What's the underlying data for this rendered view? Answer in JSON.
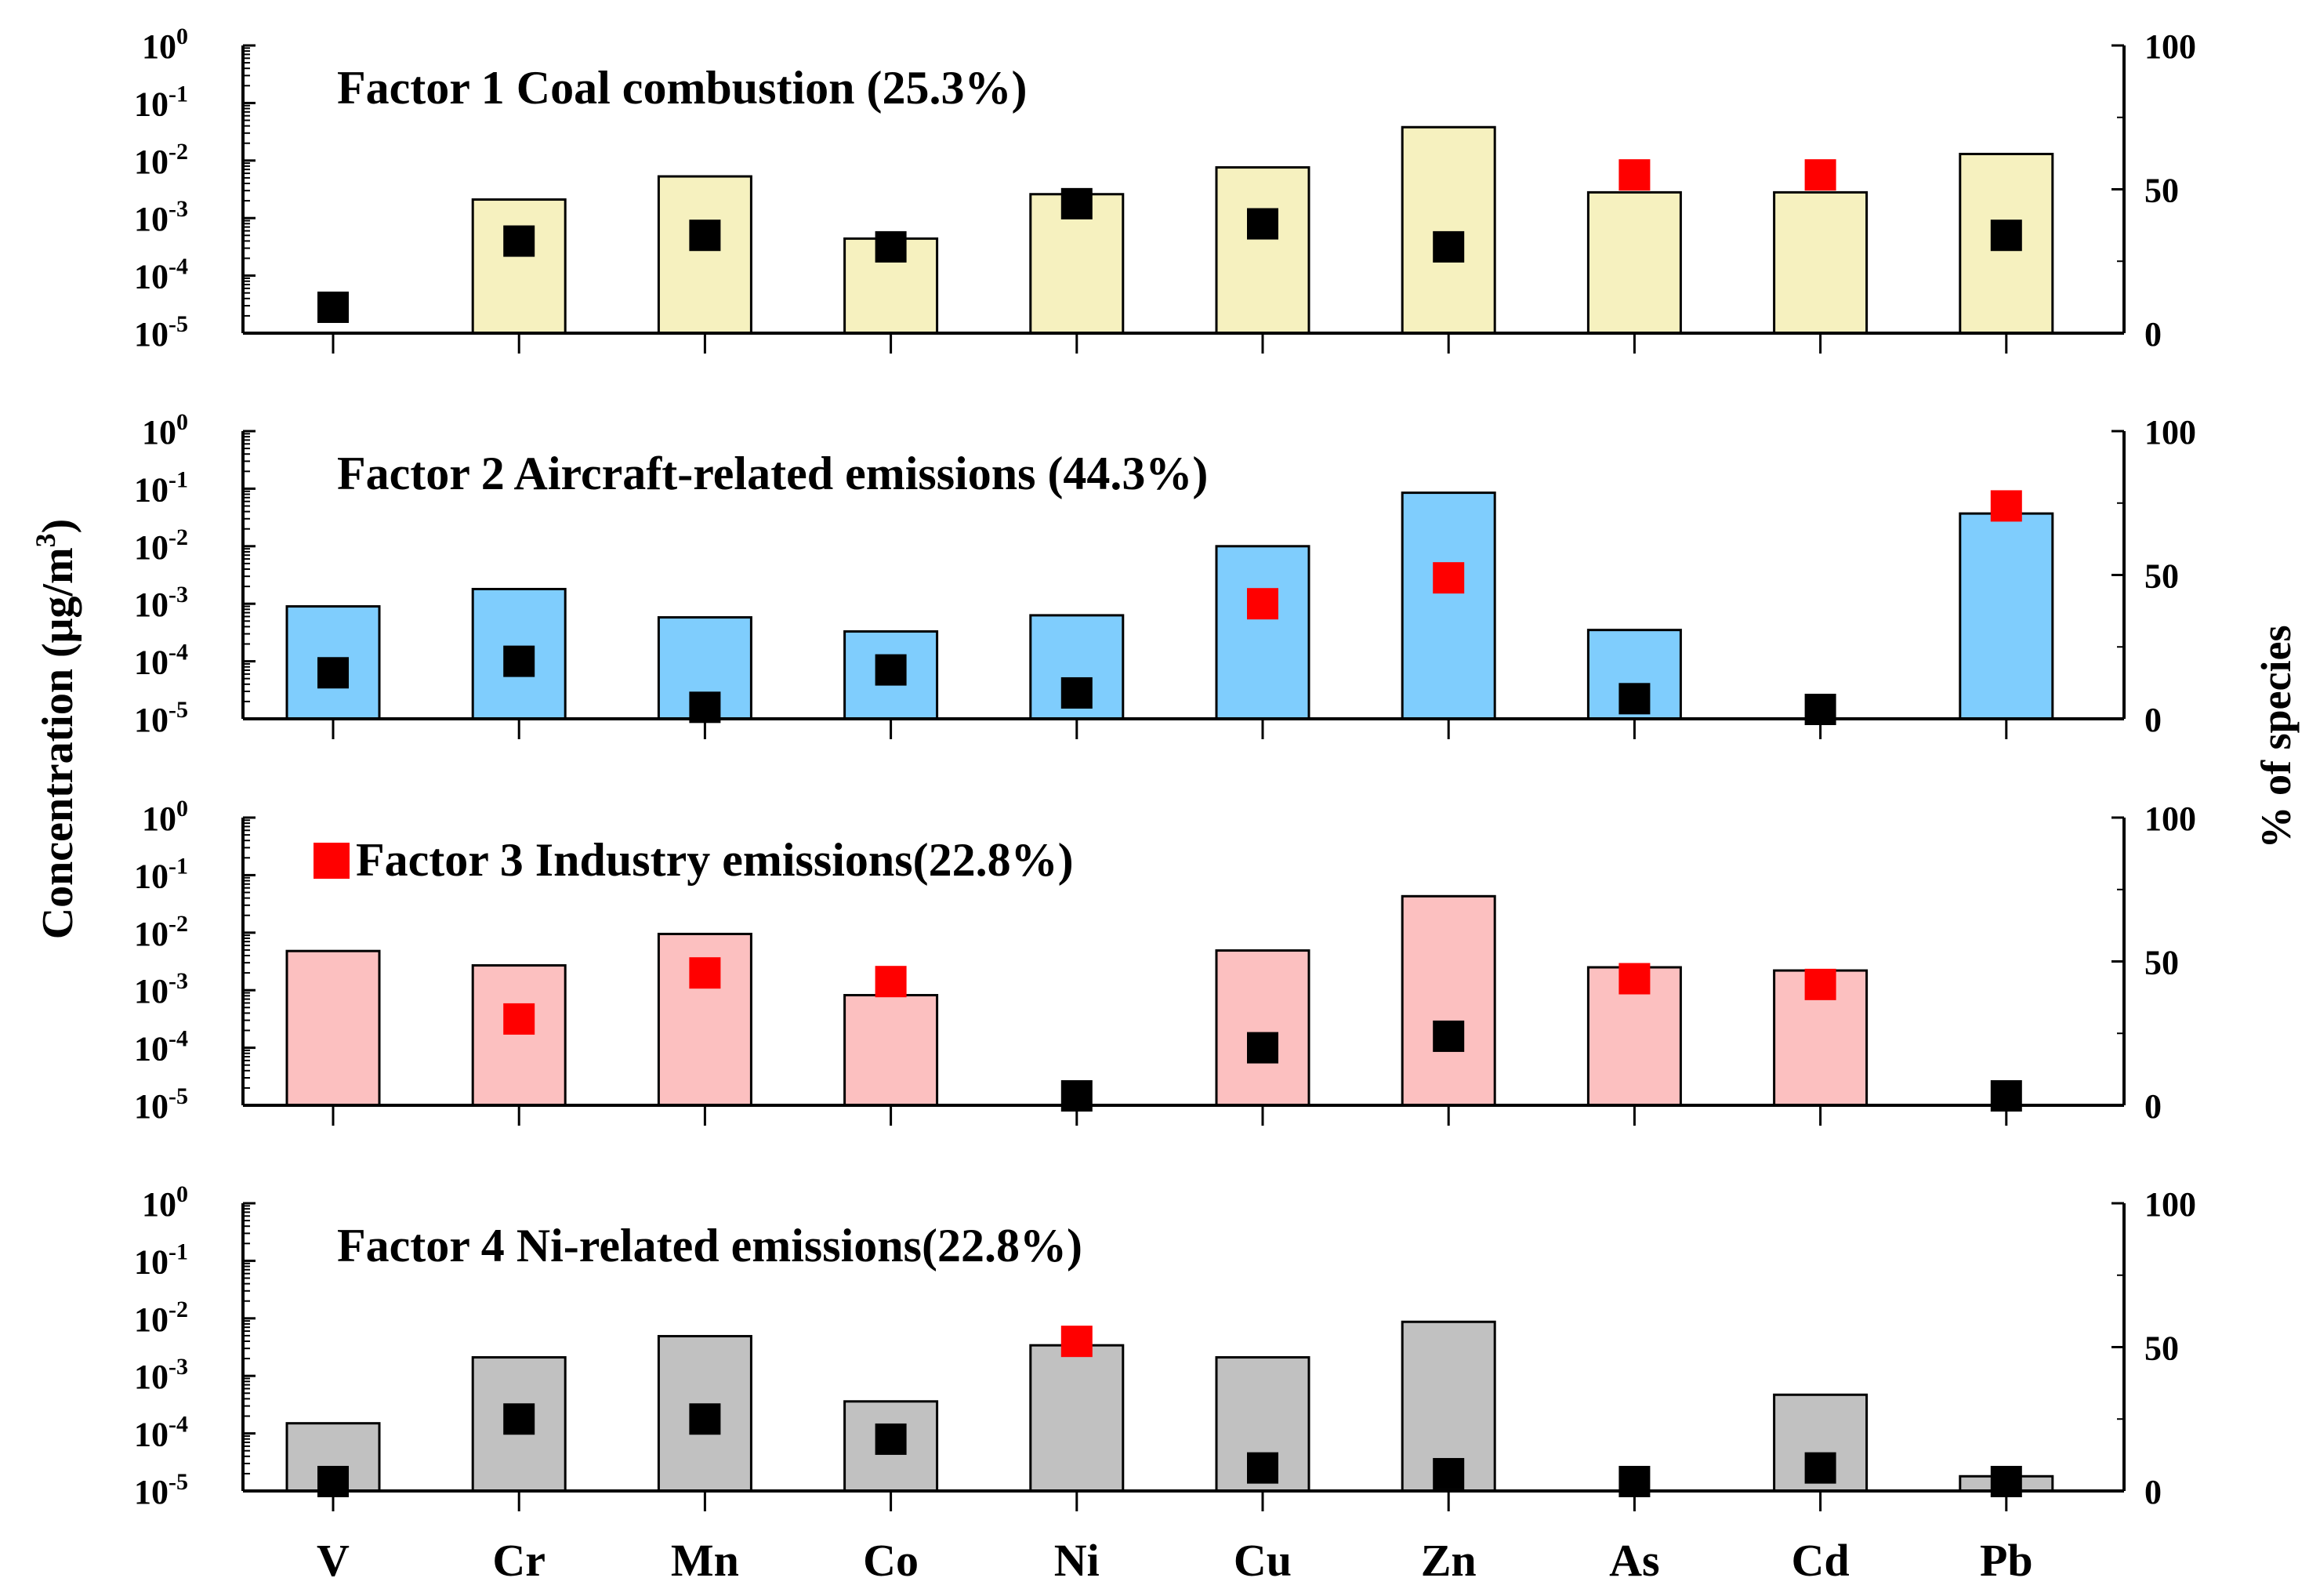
{
  "figure": {
    "y_left_label": "Concentration (μg/m",
    "y_left_label_sup": "3",
    "y_left_label_end": ")",
    "y_right_label": "% of species",
    "legend_swatch_color": "#ff0000"
  },
  "chart_data": [
    {
      "type": "bar",
      "title": "Factor 1  Coal combustion (25.3%)",
      "bar_color": "#f6f1bf",
      "categories": [
        "V",
        "Cr",
        "Mn",
        "Co",
        "Ni",
        "Cu",
        "Zn",
        "As",
        "Cd",
        "Pb"
      ],
      "y_left_scale": "log",
      "y_left_ticks": [
        {
          "base": "10",
          "exp": "0"
        },
        {
          "base": "10",
          "exp": "-1"
        },
        {
          "base": "10",
          "exp": "-2"
        },
        {
          "base": "10",
          "exp": "-3"
        },
        {
          "base": "10",
          "exp": "-4"
        },
        {
          "base": "10",
          "exp": "-5"
        }
      ],
      "y_left_lim": [
        1e-05,
        1
      ],
      "y_right_ticks": [
        "100",
        "50",
        "0"
      ],
      "y_right_lim": [
        0,
        100
      ],
      "concentration": [
        null,
        0.0021,
        0.0053,
        0.00044,
        0.0026,
        0.0076,
        0.038,
        0.0028,
        0.0028,
        0.013
      ],
      "percent_of_species": [
        9,
        32,
        34,
        30,
        45,
        38,
        30,
        55,
        55,
        34
      ],
      "percent_marker_colors": [
        "#000000",
        "#000000",
        "#000000",
        "#000000",
        "#000000",
        "#000000",
        "#000000",
        "#ff0000",
        "#ff0000",
        "#000000"
      ]
    },
    {
      "type": "bar",
      "title": "Factor 2 Aircraft-related emissions (44.3%)",
      "bar_color": "#7fcdfd",
      "categories": [
        "V",
        "Cr",
        "Mn",
        "Co",
        "Ni",
        "Cu",
        "Zn",
        "As",
        "Cd",
        "Pb"
      ],
      "y_left_scale": "log",
      "y_left_ticks": [
        {
          "base": "10",
          "exp": "0"
        },
        {
          "base": "10",
          "exp": "-1"
        },
        {
          "base": "10",
          "exp": "-2"
        },
        {
          "base": "10",
          "exp": "-3"
        },
        {
          "base": "10",
          "exp": "-4"
        },
        {
          "base": "10",
          "exp": "-5"
        }
      ],
      "y_left_lim": [
        1e-05,
        1
      ],
      "y_right_ticks": [
        "100",
        "50",
        "0"
      ],
      "y_right_lim": [
        0,
        100
      ],
      "concentration": [
        0.0009,
        0.0018,
        0.00058,
        0.00033,
        0.00063,
        0.01,
        0.085,
        0.00035,
        null,
        0.037
      ],
      "percent_of_species": [
        16,
        20,
        4,
        17,
        9,
        40,
        49,
        7,
        1,
        74
      ],
      "percent_marker_colors": [
        "#000000",
        "#000000",
        "#000000",
        "#000000",
        "#000000",
        "#ff0000",
        "#ff0000",
        "#000000",
        "#000000",
        "#ff0000"
      ]
    },
    {
      "type": "bar",
      "title": "Factor 3 Industry emissions(22.8%)",
      "has_legend_swatch": true,
      "bar_color": "#fcc0c0",
      "categories": [
        "V",
        "Cr",
        "Mn",
        "Co",
        "Ni",
        "Cu",
        "Zn",
        "As",
        "Cd",
        "Pb"
      ],
      "y_left_scale": "log",
      "y_left_ticks": [
        {
          "base": "10",
          "exp": "0"
        },
        {
          "base": "10",
          "exp": "-1"
        },
        {
          "base": "10",
          "exp": "-2"
        },
        {
          "base": "10",
          "exp": "-3"
        },
        {
          "base": "10",
          "exp": "-4"
        },
        {
          "base": "10",
          "exp": "-5"
        }
      ],
      "y_left_lim": [
        1e-05,
        1
      ],
      "y_right_ticks": [
        "100",
        "50",
        "0"
      ],
      "y_right_lim": [
        0,
        100
      ],
      "concentration": [
        0.0048,
        0.0027,
        0.0095,
        0.00082,
        null,
        0.0049,
        0.043,
        0.0025,
        0.0022,
        null
      ],
      "percent_of_species": [
        null,
        30,
        46,
        43,
        1,
        20,
        24,
        44,
        42,
        1
      ],
      "percent_marker_colors": [
        "#000000",
        "#ff0000",
        "#ff0000",
        "#ff0000",
        "#000000",
        "#000000",
        "#000000",
        "#ff0000",
        "#ff0000",
        "#000000"
      ]
    },
    {
      "type": "bar",
      "title": "Factor 4 Ni-related emissions(22.8%)",
      "bar_color": "#c1c1c1",
      "categories": [
        "V",
        "Cr",
        "Mn",
        "Co",
        "Ni",
        "Cu",
        "Zn",
        "As",
        "Cd",
        "Pb"
      ],
      "y_left_scale": "log",
      "y_left_ticks": [
        {
          "base": "10",
          "exp": "0"
        },
        {
          "base": "10",
          "exp": "-1"
        },
        {
          "base": "10",
          "exp": "-2"
        },
        {
          "base": "10",
          "exp": "-3"
        },
        {
          "base": "10",
          "exp": "-4"
        },
        {
          "base": "10",
          "exp": "-5"
        }
      ],
      "y_left_lim": [
        1e-05,
        1
      ],
      "y_right_ticks": [
        "100",
        "50",
        "0"
      ],
      "y_right_lim": [
        0,
        100
      ],
      "concentration": [
        0.00015,
        0.0021,
        0.0049,
        0.00036,
        0.0034,
        0.0021,
        0.0087,
        null,
        0.00047,
        1.8e-05
      ],
      "percent_of_species": [
        3,
        25,
        25,
        18,
        52,
        8,
        6,
        1,
        8,
        1
      ],
      "percent_marker_colors": [
        "#000000",
        "#000000",
        "#000000",
        "#000000",
        "#ff0000",
        "#000000",
        "#000000",
        "#000000",
        "#000000",
        "#000000"
      ]
    }
  ]
}
